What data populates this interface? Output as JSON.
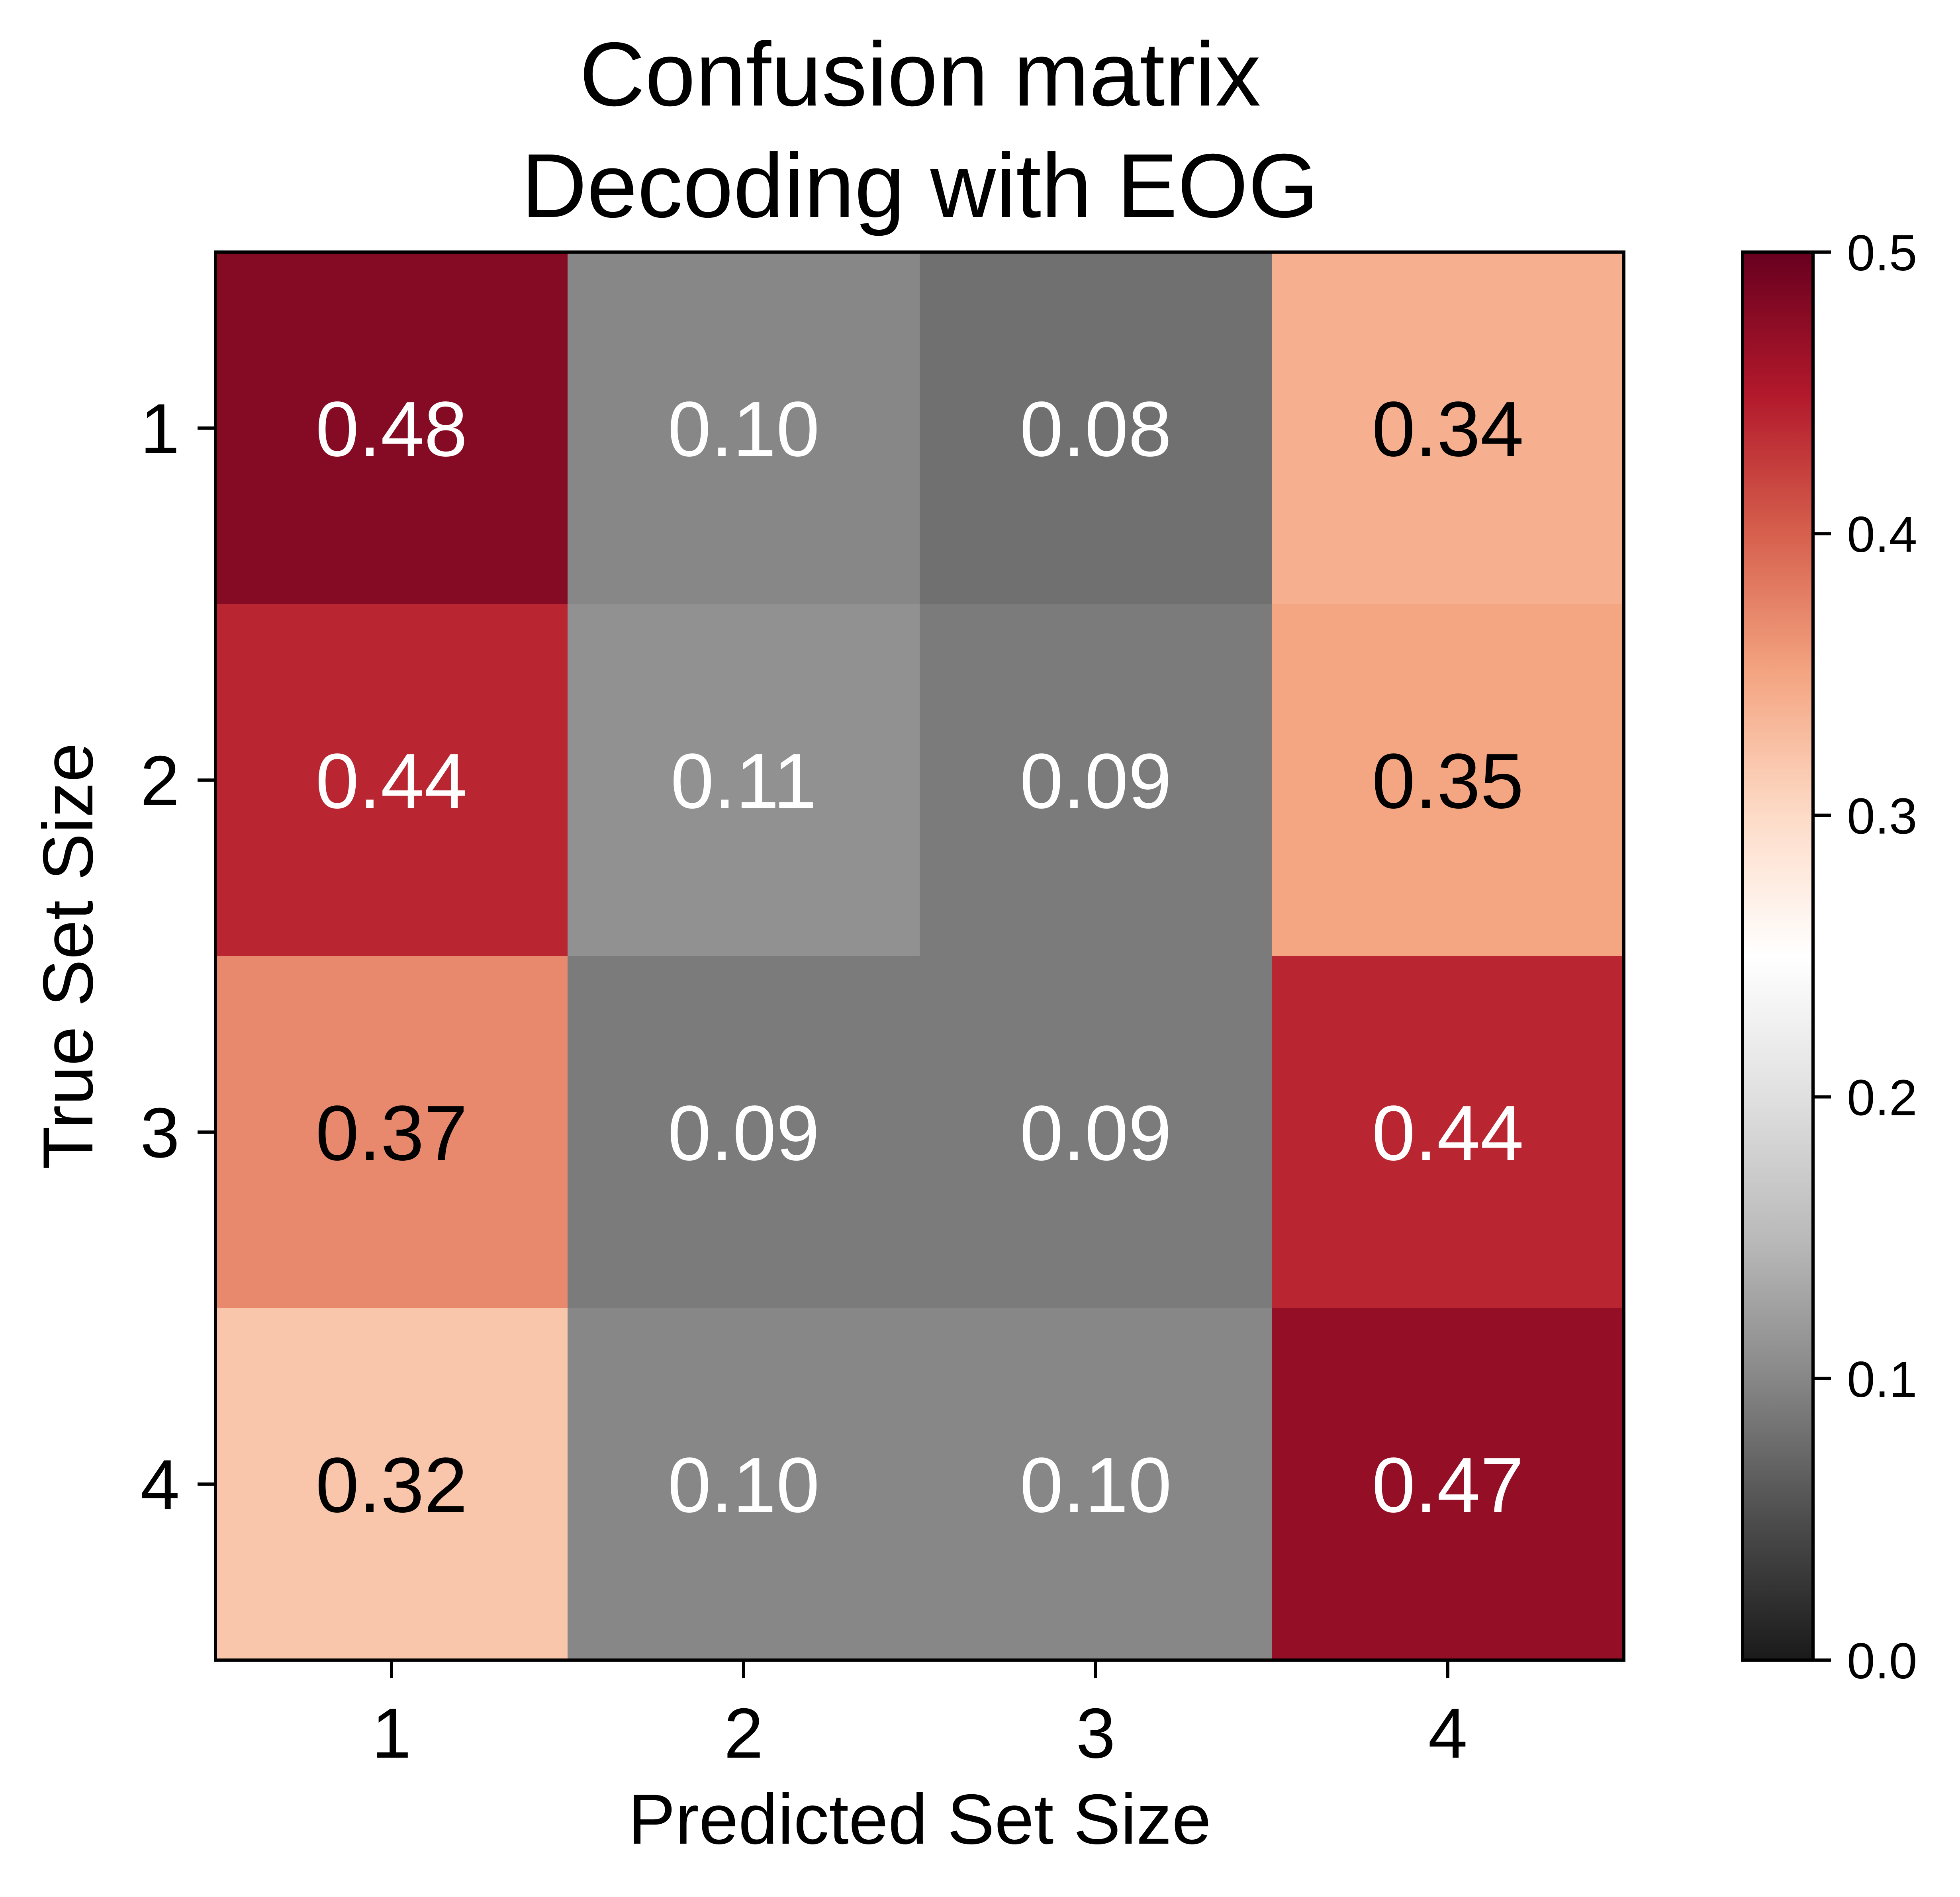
{
  "chart_data": {
    "type": "heatmap",
    "title_lines": [
      "Confusion matrix",
      "Decoding with EOG"
    ],
    "xlabel": "Predicted Set Size",
    "ylabel": "True Set Size",
    "x_categories": [
      "1",
      "2",
      "3",
      "4"
    ],
    "y_categories": [
      "1",
      "2",
      "3",
      "4"
    ],
    "matrix": [
      [
        0.48,
        0.1,
        0.08,
        0.34
      ],
      [
        0.44,
        0.11,
        0.09,
        0.35
      ],
      [
        0.37,
        0.09,
        0.09,
        0.44
      ],
      [
        0.32,
        0.1,
        0.1,
        0.47
      ]
    ],
    "cell_labels": [
      [
        "0.48",
        "0.10",
        "0.08",
        "0.34"
      ],
      [
        "0.44",
        "0.11",
        "0.09",
        "0.35"
      ],
      [
        "0.37",
        "0.09",
        "0.09",
        "0.44"
      ],
      [
        "0.32",
        "0.10",
        "0.10",
        "0.47"
      ]
    ],
    "colorbar": {
      "range": [
        0.0,
        0.5
      ],
      "ticks": [
        0.0,
        0.1,
        0.2,
        0.3,
        0.4,
        0.5
      ],
      "tick_labels": [
        "0.0",
        "0.1",
        "0.2",
        "0.3",
        "0.4",
        "0.5"
      ],
      "colormap": "gray to white to red (RdGy reversed)",
      "stops": [
        {
          "value": 0.0,
          "color": "#1a1a1a"
        },
        {
          "value": 0.05,
          "color": "#4d4d4d"
        },
        {
          "value": 0.1,
          "color": "#878787"
        },
        {
          "value": 0.15,
          "color": "#bababa"
        },
        {
          "value": 0.2,
          "color": "#e0e0e0"
        },
        {
          "value": 0.25,
          "color": "#ffffff"
        },
        {
          "value": 0.3,
          "color": "#fddbc7"
        },
        {
          "value": 0.35,
          "color": "#f4a582"
        },
        {
          "value": 0.4,
          "color": "#d6604d"
        },
        {
          "value": 0.45,
          "color": "#b2182b"
        },
        {
          "value": 0.5,
          "color": "#67001f"
        }
      ]
    },
    "label_colors": {
      "dark": "#000000",
      "light": "#ffffff"
    }
  }
}
